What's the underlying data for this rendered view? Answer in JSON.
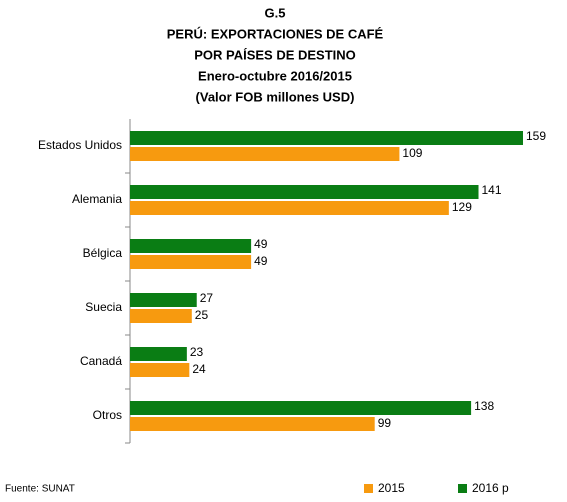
{
  "chart_data": {
    "type": "hbar",
    "title": [
      "G.5",
      "PERÚ: EXPORTACIONES DE CAFÉ",
      "POR PAÍSES DE DESTINO",
      "Enero-octubre 2016/2015",
      "(Valor FOB millones USD)"
    ],
    "categories": [
      "Estados Unidos",
      "Alemania",
      "Bélgica",
      "Suecia",
      "Canadá",
      "Otros"
    ],
    "series": [
      {
        "name": "2015",
        "color": "#f79a0f",
        "values": [
          109,
          129,
          49,
          25,
          24,
          99
        ]
      },
      {
        "name": "2016 p",
        "color": "#0a7d14",
        "values": [
          159,
          141,
          49,
          27,
          23,
          138
        ]
      }
    ],
    "source": "Fuente: SUNAT"
  }
}
